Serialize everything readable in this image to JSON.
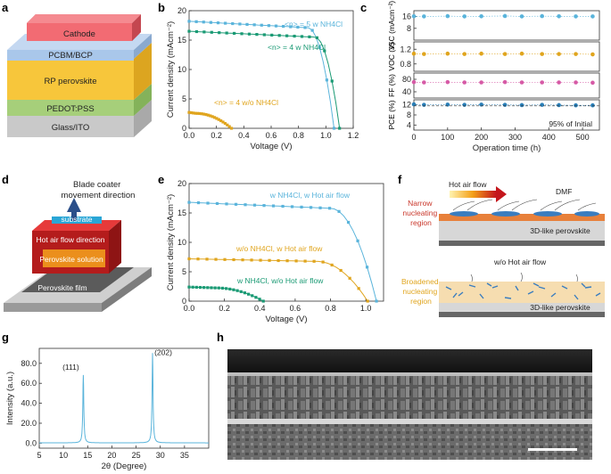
{
  "panel_labels": [
    "a",
    "b",
    "c",
    "d",
    "e",
    "f",
    "g",
    "h"
  ],
  "device_stack": {
    "layers": [
      "Cathode",
      "PCBM/BCP",
      "RP perovskite",
      "PEDOT:PSS",
      "Glass/ITO"
    ],
    "colors": [
      "#f26b73",
      "#a9c7ea",
      "#f7c63b",
      "#a6cf7a",
      "#c9c9c9"
    ]
  },
  "coater": {
    "direction_label": "Blade coater\nmovement direction",
    "labels": [
      "substrate",
      "Hot air flow direction",
      "Perovskite solution",
      "Perovskite film"
    ]
  },
  "mechanism": {
    "top_labels": [
      "Hot air flow",
      "DMF",
      "Narrow\nnucleating\nregion",
      "3D-like perovskite"
    ],
    "bottom_labels": [
      "w/o Hot air flow",
      "Broadened\nnucleating\nregion",
      "3D-like perovskite"
    ]
  },
  "sem": {
    "description_colors": {
      "accent": "#ffffff"
    }
  },
  "chart_data": [
    {
      "id": "b",
      "type": "line",
      "xlabel": "Voltage (V)",
      "ylabel": "Current density (mAcm⁻²)",
      "xlim": [
        0,
        1.2
      ],
      "ylim": [
        0,
        20
      ],
      "xticks": [
        "0.0",
        "0.2",
        "0.4",
        "0.6",
        "0.8",
        "1.0",
        "1.2"
      ],
      "yticks": [
        "0",
        "5",
        "10",
        "15",
        "20"
      ],
      "series": [
        {
          "name": "<n> = 5 w NH4Cl",
          "color": "#5ab4db",
          "jsc": 18.2,
          "voc": 1.06,
          "knee": 0.87
        },
        {
          "name": "<n> = 4 w NH4Cl",
          "color": "#1a9a74",
          "jsc": 16.5,
          "voc": 1.1,
          "knee": 0.92
        },
        {
          "name": "<n> = 4 w/o NH4Cl",
          "color": "#e0a51e",
          "jsc": 2.7,
          "voc": 0.31,
          "knee": 0.05
        }
      ]
    },
    {
      "id": "c",
      "type": "scatter",
      "xlabel": "Operation time (h)",
      "xlim": [
        0,
        550
      ],
      "xticks": [
        "0",
        "100",
        "200",
        "300",
        "400",
        "500"
      ],
      "x": [
        0,
        30,
        100,
        150,
        200,
        270,
        320,
        380,
        430,
        480,
        530
      ],
      "rows": [
        {
          "label": "JSC (mAcm⁻²)",
          "ticks": [
            "8",
            "16"
          ],
          "range": [
            0,
            20
          ],
          "values": [
            16.2,
            16.1,
            16.3,
            16.1,
            16.2,
            16.4,
            16.1,
            16.3,
            16.2,
            16.1,
            16.1
          ],
          "color": "#5ab4db"
        },
        {
          "label": "VOC (V)",
          "ticks": [
            "0.8",
            "1.2"
          ],
          "range": [
            0.6,
            1.4
          ],
          "values": [
            1.08,
            1.07,
            1.08,
            1.07,
            1.08,
            1.07,
            1.08,
            1.07,
            1.07,
            1.07,
            1.06
          ],
          "color": "#e0a51e"
        },
        {
          "label": "FF (%)",
          "ticks": [
            "40",
            "80"
          ],
          "range": [
            20,
            100
          ],
          "values": [
            71,
            70,
            71,
            70,
            70,
            71,
            70,
            70,
            70,
            70,
            69
          ],
          "color": "#d65aa6"
        },
        {
          "label": "PCE (%)",
          "ticks": [
            "4",
            "8",
            "12"
          ],
          "range": [
            2,
            14
          ],
          "values": [
            12.2,
            12.0,
            12.1,
            12.0,
            12.1,
            12.0,
            11.9,
            12.0,
            11.9,
            11.8,
            11.8
          ],
          "color": "#2a7fb8"
        }
      ],
      "annotation": "95% of Initial"
    },
    {
      "id": "e",
      "type": "line",
      "xlabel": "Voltage (V)",
      "ylabel": "Current density (mAcm⁻²)",
      "xlim": [
        0,
        1.1
      ],
      "ylim": [
        0,
        20
      ],
      "xticks": [
        "0.0",
        "0.2",
        "0.4",
        "0.6",
        "0.8",
        "1.0"
      ],
      "yticks": [
        "0",
        "5",
        "10",
        "15",
        "20"
      ],
      "series": [
        {
          "name": "w NH4Cl, w Hot air flow",
          "color": "#5ab4db",
          "jsc": 16.8,
          "voc": 1.06,
          "knee": 0.8
        },
        {
          "name": "w/o NH4Cl, w Hot air flow",
          "color": "#e0a51e",
          "jsc": 7.2,
          "voc": 1.01,
          "knee": 0.72
        },
        {
          "name": "w NH4Cl, w/o Hot air flow",
          "color": "#1a9a74",
          "jsc": 2.4,
          "voc": 0.42,
          "knee": 0.15
        }
      ]
    },
    {
      "id": "g",
      "type": "line",
      "xlabel": "2θ (Degree)",
      "ylabel": "Intensity (a.u.)",
      "xlim": [
        5,
        40
      ],
      "ylim": [
        -5,
        95
      ],
      "xticks": [
        "5",
        "10",
        "15",
        "20",
        "25",
        "30",
        "35"
      ],
      "yticks": [
        "0.0",
        "20.0",
        "40.0",
        "60.0",
        "80.0"
      ],
      "peaks": [
        {
          "label": "(111)",
          "x": 14.1,
          "y": 68
        },
        {
          "label": "(202)",
          "x": 28.4,
          "y": 90
        }
      ],
      "color": "#5ab4db"
    }
  ]
}
